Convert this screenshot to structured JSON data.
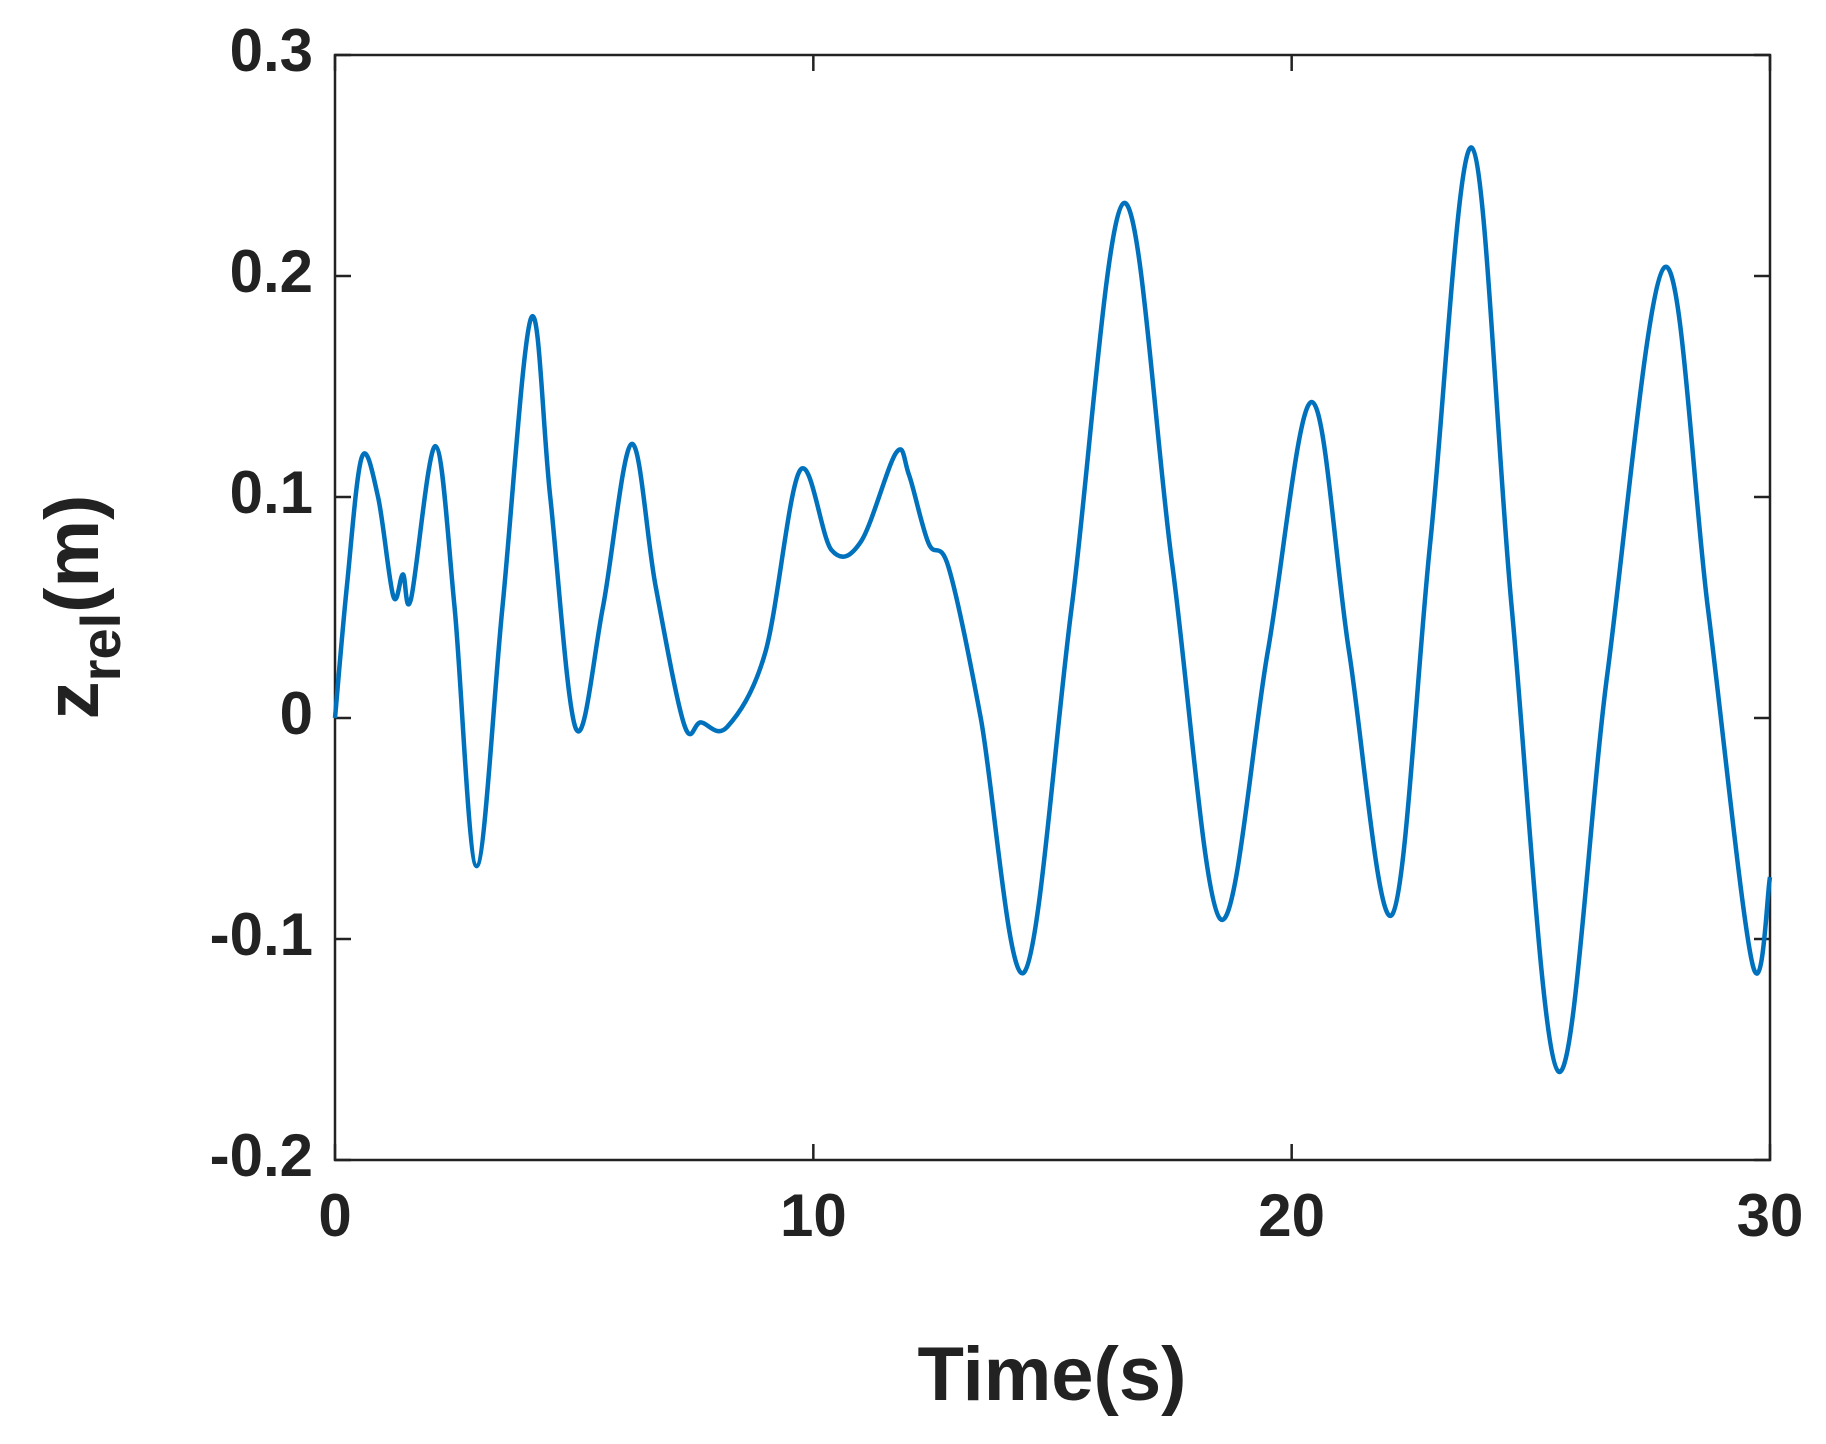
{
  "chart_data": {
    "type": "line",
    "xlabel": "Time(s)",
    "ylabel": {
      "base": "z",
      "subscript": "rel",
      "suffix": "(m)"
    },
    "x": [
      0,
      0.25,
      0.56,
      0.9,
      1.22,
      1.42,
      1.59,
      2.1,
      2.5,
      2.96,
      3.5,
      4.1,
      4.5,
      5.04,
      5.6,
      6.2,
      6.7,
      7.3,
      7.65,
      8.2,
      9.0,
      9.72,
      10.38,
      11.0,
      11.73,
      12.0,
      12.41,
      12.83,
      13.5,
      14.41,
      15.4,
      16.49,
      17.5,
      18.51,
      19.5,
      20.42,
      21.2,
      22.1,
      22.9,
      23.77,
      24.6,
      25.58,
      26.6,
      27.8,
      28.7,
      29.63,
      30
    ],
    "values": [
      0,
      0.06,
      0.118,
      0.1,
      0.055,
      0.065,
      0.054,
      0.123,
      0.05,
      -0.067,
      0.05,
      0.181,
      0.1,
      -0.005,
      0.05,
      0.124,
      0.06,
      -0.003,
      -0.002,
      -0.004,
      0.03,
      0.112,
      0.076,
      0.08,
      0.12,
      0.11,
      0.079,
      0.068,
      0.0,
      -0.115,
      0.05,
      0.233,
      0.07,
      -0.091,
      0.03,
      0.143,
      0.03,
      -0.089,
      0.08,
      0.258,
      0.05,
      -0.16,
      0.02,
      0.204,
      0.05,
      -0.111,
      -0.072
    ],
    "color": "#0072bd",
    "xlim": [
      0,
      30
    ],
    "xticks": [
      0,
      10,
      20,
      30
    ],
    "ylim": [
      -0.2,
      0.3
    ],
    "yticks": [
      -0.2,
      -0.1,
      0,
      0.1,
      0.2,
      0.3
    ]
  }
}
